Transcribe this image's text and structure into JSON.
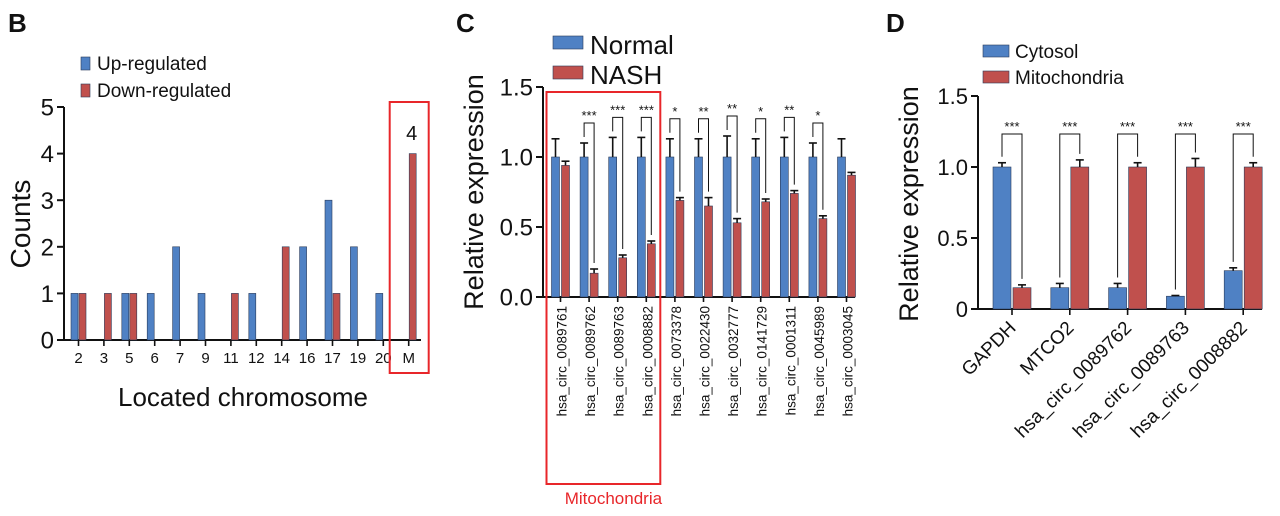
{
  "colors": {
    "blue": "#4f81c4",
    "red": "#c0504d",
    "highlight": "#e8262a",
    "axis": "#111111"
  },
  "chart_data": [
    {
      "panel": "B",
      "type": "bar",
      "xlabel": "Located chromosome",
      "ylabel": "Counts",
      "ylim": [
        0,
        5
      ],
      "yticks": [
        "0",
        "1",
        "2",
        "3",
        "4",
        "5"
      ],
      "categories": [
        "2",
        "3",
        "5",
        "6",
        "7",
        "9",
        "11",
        "12",
        "14",
        "16",
        "17",
        "19",
        "20",
        "M"
      ],
      "series": [
        {
          "name": "Up-regulated",
          "color": "blue",
          "values": [
            1,
            0,
            1,
            1,
            2,
            1,
            0,
            1,
            0,
            2,
            3,
            2,
            1,
            0
          ]
        },
        {
          "name": "Down-regulated",
          "color": "red",
          "values": [
            1,
            1,
            1,
            0,
            0,
            0,
            1,
            0,
            2,
            0,
            1,
            0,
            0,
            4
          ]
        }
      ],
      "annotation": "4",
      "highlight_category": "M",
      "legend": "top-left"
    },
    {
      "panel": "C",
      "type": "bar",
      "ylabel": "Relative expression",
      "ylim": [
        0,
        1.5
      ],
      "yticks": [
        "0.0",
        "0.5",
        "1.0",
        "1.5"
      ],
      "categories": [
        "hsa_circ_0089761",
        "hsa_circ_0089762",
        "hsa_circ_0089763",
        "hsa_circ_0008882",
        "hsa_circ_0073378",
        "hsa_circ_0022430",
        "hsa_circ_0032777",
        "hsa_circ_0141729",
        "hsa_circ_0001311",
        "hsa_circ_0045989",
        "hsa_circ_0003045"
      ],
      "series": [
        {
          "name": "Normal",
          "color": "blue",
          "values": [
            1.0,
            1.0,
            1.0,
            1.0,
            1.0,
            1.0,
            1.0,
            1.0,
            1.0,
            1.0,
            1.0
          ],
          "errors": [
            0.13,
            0.1,
            0.14,
            0.14,
            0.13,
            0.13,
            0.15,
            0.13,
            0.14,
            0.1,
            0.13
          ]
        },
        {
          "name": "NASH",
          "color": "red",
          "values": [
            0.94,
            0.17,
            0.28,
            0.38,
            0.69,
            0.65,
            0.53,
            0.68,
            0.74,
            0.56,
            0.87
          ],
          "errors": [
            0.03,
            0.03,
            0.02,
            0.02,
            0.02,
            0.06,
            0.03,
            0.02,
            0.02,
            0.02,
            0.02
          ]
        }
      ],
      "significance": [
        "",
        "***",
        "***",
        "***",
        "*",
        "**",
        "**",
        "*",
        "**",
        "*",
        ""
      ],
      "highlight_label": "Mitochondria",
      "highlight_range": [
        0,
        3
      ],
      "legend": "top"
    },
    {
      "panel": "D",
      "type": "bar",
      "ylabel": "Relative expression",
      "ylim": [
        0,
        1.5
      ],
      "yticks": [
        "0",
        "0.5",
        "1.0",
        "1.5"
      ],
      "categories": [
        "GAPDH",
        "MTCO2",
        "hsa_circ_0089762",
        "hsa_circ_0089763",
        "hsa_circ_0008882"
      ],
      "series": [
        {
          "name": "Cytosol",
          "color": "blue",
          "values": [
            1.0,
            0.15,
            0.15,
            0.09,
            0.27
          ],
          "errors": [
            0.03,
            0.03,
            0.03,
            0.005,
            0.02
          ]
        },
        {
          "name": "Mitochondria",
          "color": "red",
          "values": [
            0.15,
            1.0,
            1.0,
            1.0,
            1.0
          ],
          "errors": [
            0.02,
            0.05,
            0.03,
            0.06,
            0.03
          ]
        }
      ],
      "significance": [
        "***",
        "***",
        "***",
        "***",
        "***"
      ],
      "legend": "top-left"
    }
  ]
}
